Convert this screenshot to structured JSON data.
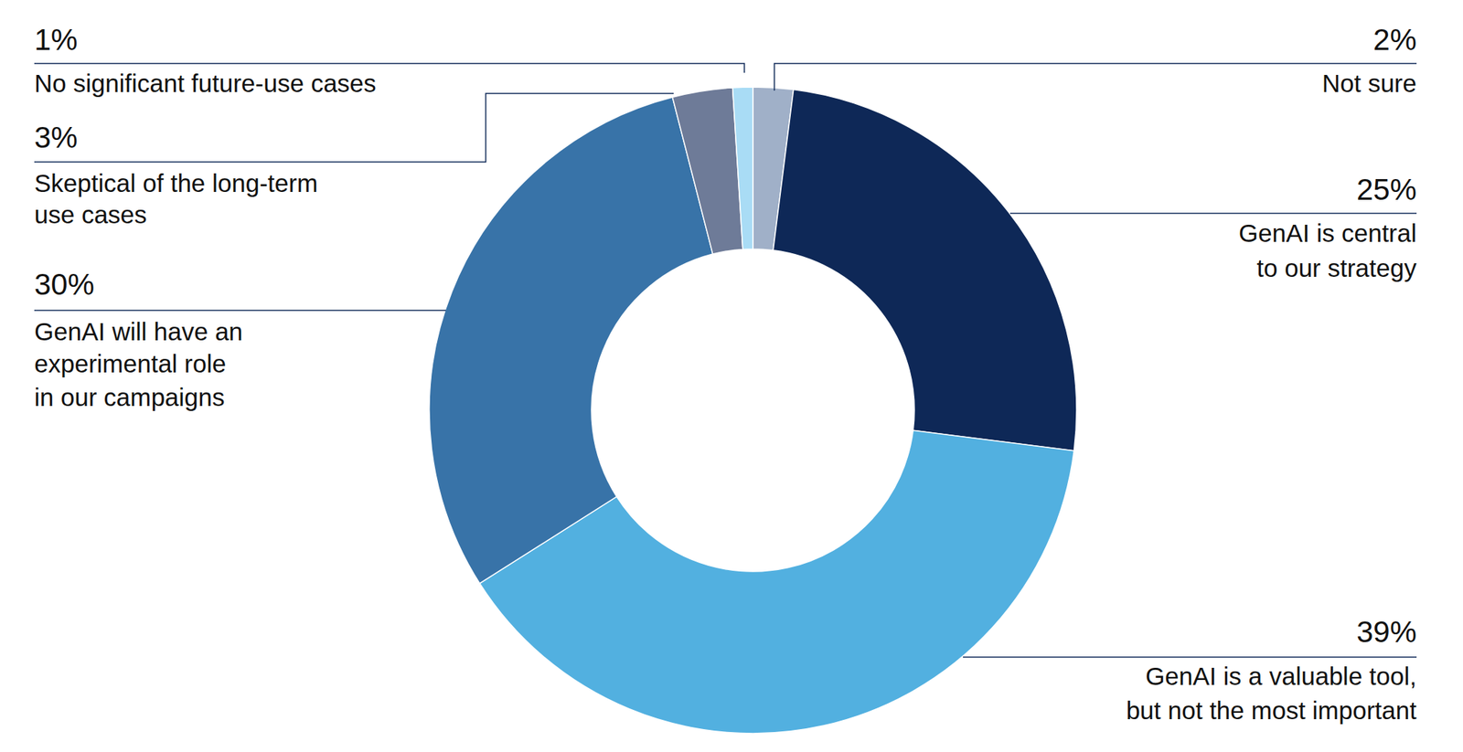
{
  "chart_data": {
    "type": "donut",
    "categories": [
      "Not sure",
      "GenAI is central\nto our strategy",
      "GenAI is a valuable tool,\nbut not the most important",
      "GenAI will have an\nexperimental role\nin our campaigns",
      "Skeptical of the long-term\nuse cases",
      "No significant future-use cases"
    ],
    "values": [
      2,
      25,
      39,
      30,
      3,
      1
    ],
    "value_labels": [
      "2%",
      "25%",
      "39%",
      "30%",
      "3%",
      "1%"
    ],
    "colors": [
      "#a0b0c8",
      "#0e2857",
      "#52b0e0",
      "#3873a8",
      "#6e7b98",
      "#a9dcf5"
    ],
    "data_labels": true
  }
}
